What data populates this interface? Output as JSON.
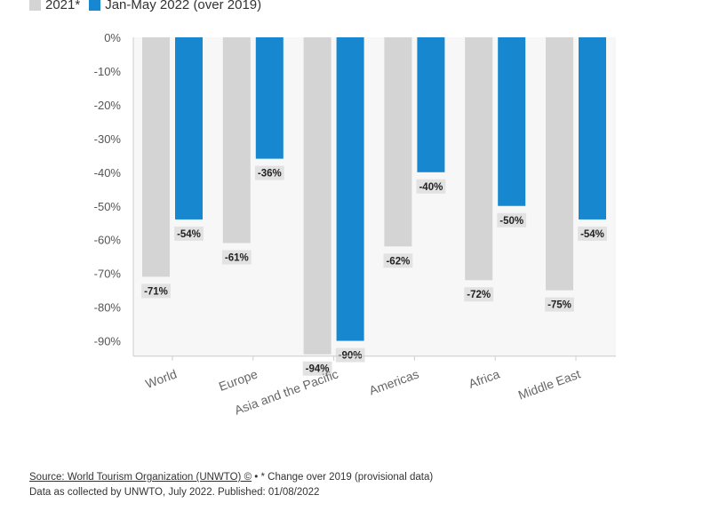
{
  "legend": [
    {
      "label": "2021*",
      "color": "#d4d4d4"
    },
    {
      "label": "Jan-May 2022 (over 2019)",
      "color": "#1787cf"
    }
  ],
  "chart_data": {
    "type": "bar",
    "categories": [
      "World",
      "Europe",
      "Asia and the Pacific",
      "Americas",
      "Africa",
      "Middle East"
    ],
    "series": [
      {
        "name": "2021*",
        "values": [
          -71,
          -61,
          -94,
          -62,
          -72,
          -75
        ],
        "labels": [
          "-71%",
          "-61%",
          "-94%",
          "-62%",
          "-72%",
          "-75%"
        ],
        "color": "#d4d4d4"
      },
      {
        "name": "Jan-May 2022 (over 2019)",
        "values": [
          -54,
          -36,
          -90,
          -40,
          -50,
          -54
        ],
        "labels": [
          "-54%",
          "-36%",
          "-90%",
          "-40%",
          "-50%",
          "-54%"
        ],
        "color": "#1787cf"
      }
    ],
    "ylim": [
      -94,
      0
    ],
    "yticks": [
      0,
      -10,
      -20,
      -30,
      -40,
      -50,
      -60,
      -70,
      -80,
      -90
    ],
    "ytick_labels": [
      "0%",
      "-10%",
      "-20%",
      "-30%",
      "-40%",
      "-50%",
      "-60%",
      "-70%",
      "-80%",
      "-90%"
    ],
    "title": "",
    "xlabel": "",
    "ylabel": "",
    "grid": false
  },
  "footer": {
    "source_link": "Source: World Tourism Organization (UNWTO) ©",
    "note": " • * Change over 2019 (provisional data)",
    "line2": "Data as collected by UNWTO, July 2022. Published: 01/08/2022"
  }
}
